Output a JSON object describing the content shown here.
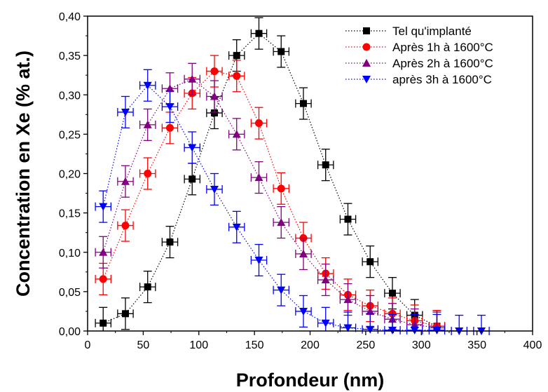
{
  "chart_data": {
    "type": "scatter",
    "xlabel": "Profondeur (nm)",
    "ylabel": "Concentration en Xe (% at.)",
    "xlim": [
      0,
      400
    ],
    "ylim": [
      0,
      0.4
    ],
    "x_ticks": [
      0,
      50,
      100,
      150,
      200,
      250,
      300,
      350,
      400
    ],
    "x_tick_labels": [
      "0",
      "50",
      "100",
      "150",
      "200",
      "250",
      "300",
      "350",
      "400"
    ],
    "y_ticks": [
      0,
      0.05,
      0.1,
      0.15,
      0.2,
      0.25,
      0.3,
      0.35,
      0.4
    ],
    "y_tick_labels": [
      "0,00",
      "0,05",
      "0,10",
      "0,15",
      "0,20",
      "0,25",
      "0,30",
      "0,35",
      "0,40"
    ],
    "legend_position": "top-right",
    "line_style": "dotted",
    "x_error": 7,
    "y_error": 0.02,
    "series": [
      {
        "name": "Tel qu'implanté",
        "color": "#000000",
        "marker": "square",
        "x": [
          14,
          34,
          54,
          74,
          94,
          114,
          134,
          154,
          174,
          194,
          214,
          234,
          254,
          274,
          294,
          314
        ],
        "y": [
          0.01,
          0.022,
          0.056,
          0.113,
          0.193,
          0.277,
          0.35,
          0.378,
          0.355,
          0.289,
          0.211,
          0.142,
          0.088,
          0.048,
          0.02,
          0.006
        ]
      },
      {
        "name": "Après 1h à 1600°C",
        "color": "#ff0000",
        "marker": "circle",
        "x": [
          14,
          34,
          54,
          74,
          94,
          114,
          134,
          154,
          174,
          194,
          214,
          234,
          254,
          274,
          294,
          314
        ],
        "y": [
          0.066,
          0.134,
          0.2,
          0.258,
          0.302,
          0.33,
          0.324,
          0.264,
          0.181,
          0.118,
          0.073,
          0.046,
          0.032,
          0.022,
          0.013,
          0.006
        ]
      },
      {
        "name": "Après 2h à 1600°C",
        "color": "#800080",
        "marker": "triangle-up",
        "x": [
          14,
          34,
          54,
          74,
          94,
          114,
          134,
          154,
          174,
          194,
          214,
          234,
          254,
          274,
          294,
          314
        ],
        "y": [
          0.1,
          0.19,
          0.262,
          0.308,
          0.32,
          0.298,
          0.25,
          0.195,
          0.138,
          0.098,
          0.065,
          0.04,
          0.025,
          0.015,
          0.008,
          0.004
        ]
      },
      {
        "name": "après 3h à 1600°C",
        "color": "#0000ff",
        "marker": "triangle-down",
        "x": [
          14,
          34,
          54,
          74,
          94,
          114,
          134,
          154,
          174,
          194,
          214,
          234,
          254,
          274,
          294,
          314,
          334,
          354
        ],
        "y": [
          0.158,
          0.278,
          0.312,
          0.285,
          0.233,
          0.18,
          0.132,
          0.09,
          0.052,
          0.025,
          0.01,
          0.004,
          0.002,
          0.001,
          0.001,
          0.001,
          0.0,
          0.0
        ]
      }
    ]
  }
}
